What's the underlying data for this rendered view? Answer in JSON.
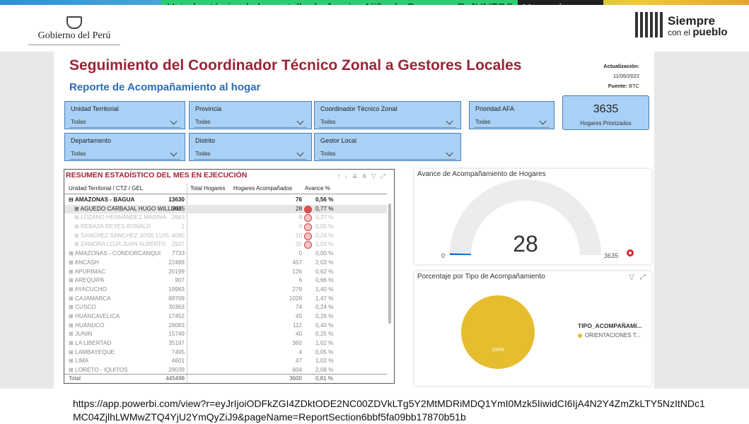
{
  "share": {
    "text": "Usted está viendo la pantalla de Jessica Niño de Guzman - P. JUNTOS",
    "button": "Ver opciones"
  },
  "header": {
    "gov": "Gobierno del Perú",
    "brand_line1": "Siempre",
    "brand_line2a": "con el",
    "brand_line2b": "pueblo"
  },
  "report": {
    "title": "Seguimiento del Coordinador Técnico Zonal a Gestores Locales",
    "subtitle": "Reporte de Acompañamiento al hogar",
    "update_label": "Actualización:",
    "update_value": "11/05/2022",
    "source_label": "Fuente:",
    "source_value": "BTC"
  },
  "slicers": {
    "ut": {
      "label": "Unidad Territorial",
      "value": "Todas"
    },
    "prov": {
      "label": "Provincia",
      "value": "Todas"
    },
    "ctz": {
      "label": "Coordinador Técnico Zonal",
      "value": "Todas"
    },
    "afa": {
      "label": "Prioridad AFA",
      "value": "Todas"
    },
    "dep": {
      "label": "Departamento",
      "value": "Todas"
    },
    "dist": {
      "label": "Distrito",
      "value": "Todas"
    },
    "gel": {
      "label": "Gestor Local",
      "value": "Todas"
    }
  },
  "kpi": {
    "value": "3635",
    "caption": "Hogares Priorizados"
  },
  "table": {
    "title": "RESUMEN ESTADÍSTICO DEL MES EN EJECUCIÓN",
    "headers": [
      "Unidad Territorial / CTZ / GEL",
      "Total Hogares",
      "Hogares Acompañados",
      "Avance %"
    ],
    "rows": [
      {
        "name": "⊟ AMAZONAS - BAGUA",
        "total": "13630",
        "acomp": "76",
        "avance": "0,56 %",
        "style": "bold"
      },
      {
        "name": "⊞ AGUEDO CARBAJAL HUGO WILLIAM",
        "total": "3635",
        "acomp": "28",
        "avance": "0,77 %",
        "style": "sel",
        "dot": "#e05050"
      },
      {
        "name": "⊞ LOZANO HERNANDEZ MARINA",
        "total": "2983",
        "acomp": "8",
        "avance": "0,27 %",
        "style": "faded",
        "dot": "#f5c3c3"
      },
      {
        "name": "⊞ REBAZA REYES RONALD",
        "total": "1",
        "acomp": "0",
        "avance": "0,00 %",
        "style": "faded",
        "dot": "#f5c3c3"
      },
      {
        "name": "⊞ SANCHEZ SANCHEZ JOSE LUIS",
        "total": "4085",
        "acomp": "10",
        "avance": "0,24 %",
        "style": "faded",
        "dot": "#f5c3c3"
      },
      {
        "name": "⊞ ZAMORA LOJA JUAN ALBERTO",
        "total": "2927",
        "acomp": "30",
        "avance": "1,02 %",
        "style": "faded",
        "dot": "#f5c3c3"
      },
      {
        "name": "⊞ AMAZONAS - CONDORCANQUI",
        "total": "7733",
        "acomp": "0",
        "avance": "0,00 %",
        "style": "muted"
      },
      {
        "name": "⊞ ANCASH",
        "total": "22489",
        "acomp": "457",
        "avance": "2,03 %",
        "style": "muted"
      },
      {
        "name": "⊞ APURIMAC",
        "total": "20199",
        "acomp": "126",
        "avance": "0,62 %",
        "style": "muted"
      },
      {
        "name": "⊞ AREQUIPA",
        "total": "907",
        "acomp": "6",
        "avance": "0,66 %",
        "style": "muted"
      },
      {
        "name": "⊞ AYACUCHO",
        "total": "19983",
        "acomp": "279",
        "avance": "1,40 %",
        "style": "muted"
      },
      {
        "name": "⊞ CAJAMARCA",
        "total": "69769",
        "acomp": "1028",
        "avance": "1,47 %",
        "style": "muted"
      },
      {
        "name": "⊞ CUSCO",
        "total": "30363",
        "acomp": "74",
        "avance": "0,24 %",
        "style": "muted"
      },
      {
        "name": "⊞ HUANCAVELICA",
        "total": "17452",
        "acomp": "45",
        "avance": "0,26 %",
        "style": "muted"
      },
      {
        "name": "⊞ HUANUCO",
        "total": "28083",
        "acomp": "112",
        "avance": "0,40 %",
        "style": "muted"
      },
      {
        "name": "⊞ JUNIN",
        "total": "15749",
        "acomp": "40",
        "avance": "0,25 %",
        "style": "muted"
      },
      {
        "name": "⊞ LA LIBERTAD",
        "total": "35197",
        "acomp": "360",
        "avance": "1,02 %",
        "style": "muted"
      },
      {
        "name": "⊞ LAMBAYEQUE",
        "total": "7495",
        "acomp": "4",
        "avance": "0,05 %",
        "style": "muted"
      },
      {
        "name": "⊞ LIMA",
        "total": "4601",
        "acomp": "47",
        "avance": "1,02 %",
        "style": "muted"
      },
      {
        "name": "⊞ LORETO - IQUITOS",
        "total": "29039",
        "acomp": "604",
        "avance": "2,08 %",
        "style": "muted"
      }
    ],
    "total_label": "Total",
    "total_hogares": "445498",
    "total_acomp": "3600",
    "total_avance": "0,81 %"
  },
  "gauge": {
    "title": "Avance de Acompañamiento de Hogares",
    "value": "28",
    "min": "0",
    "max": "3635",
    "fill_fraction": 0.0077,
    "color": "#1f6fd1"
  },
  "pie": {
    "title": "Porcentaje por Tipo de Acompañamiento",
    "legend_title": "TIPO_ACOMPAÑAMI...",
    "legend_item": "ORIENTACIONES T...",
    "slice_label": "100%",
    "color": "#e5bd2e"
  },
  "url": "https://app.powerbi.com/view?r=eyJrIjoiODFkZGI4ZDktODE2NC00ZDVkLTg5Y2MtMDRiMDQ1YmI0Mzk5IiwidCI6IjA4N2Y4ZmZkLTY5NzItNDc1MC04ZjlhLWMwZTQ4YjU2YmQyZiJ9&pageName=ReportSection6bbf5fa09bb17870b51b"
}
